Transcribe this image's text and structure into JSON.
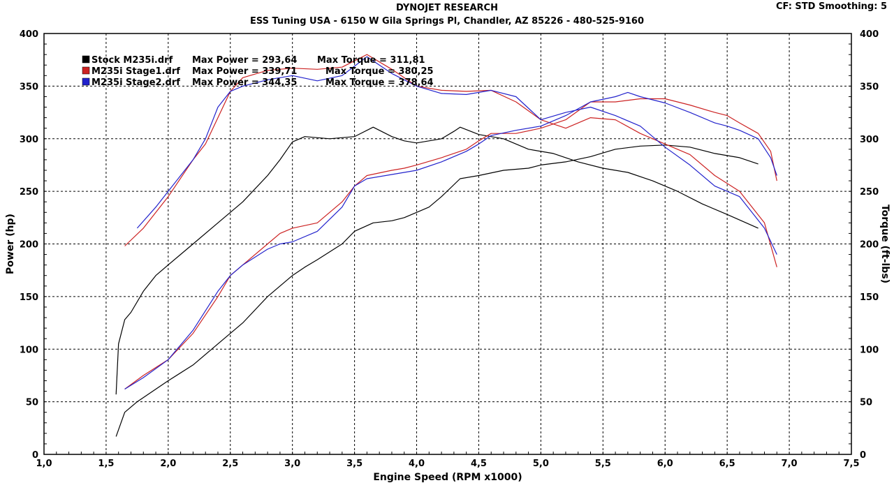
{
  "header": {
    "title": "DYNOJET RESEARCH",
    "subtitle": "ESS Tuning USA - 6150 W Gila Springs Pl, Chandler, AZ 85226 - 480-525-9160",
    "cf_info": "CF: STD  Smoothing: 5"
  },
  "colors": {
    "stock": "#000000",
    "stage1": "#cc2222",
    "stage2": "#2222cc",
    "grid": "#000000"
  },
  "chart_data": {
    "type": "line",
    "title": "DYNOJET RESEARCH",
    "xlabel": "Engine Speed (RPM x1000)",
    "ylabel": "Power (hp)",
    "ylabel_right": "Torque (ft-lbs)",
    "xlim": [
      1.0,
      7.5
    ],
    "ylim": [
      0,
      400
    ],
    "ylim_right": [
      0,
      400
    ],
    "x_ticks": [
      "1,0",
      "1,5",
      "2,0",
      "2,5",
      "3,0",
      "3,5",
      "4,0",
      "4,5",
      "5,0",
      "5,5",
      "6,0",
      "6,5",
      "7,0",
      "7,5"
    ],
    "y_ticks": [
      "0",
      "50",
      "100",
      "150",
      "200",
      "250",
      "300",
      "350",
      "400"
    ],
    "grid": true,
    "legend_position": "top-left",
    "legend": [
      {
        "run": "Stock M235i.drf",
        "power_label": "Max Power = 293,64",
        "torque_label": "Max Torque = 311,81",
        "color": "#000000"
      },
      {
        "run": "M235i Stage1.drf",
        "power_label": "Max Power = 339,71",
        "torque_label": "Max Torque = 380,25",
        "color": "#cc2222"
      },
      {
        "run": "M235i Stage2.drf",
        "power_label": "Max Power = 344,35",
        "torque_label": "Max Torque = 378,64",
        "color": "#2222cc"
      }
    ],
    "series": [
      {
        "name": "Stock M235i.drf",
        "measure": "power",
        "color": "#000000",
        "x": [
          1.58,
          1.65,
          1.75,
          1.9,
          2.0,
          2.2,
          2.4,
          2.6,
          2.8,
          3.0,
          3.1,
          3.2,
          3.4,
          3.5,
          3.65,
          3.8,
          3.9,
          4.0,
          4.1,
          4.2,
          4.35,
          4.5,
          4.7,
          4.9,
          5.0,
          5.2,
          5.4,
          5.6,
          5.8,
          6.0,
          6.2,
          6.4,
          6.6,
          6.75
        ],
        "y": [
          17,
          40,
          50,
          62,
          70,
          85,
          105,
          125,
          150,
          170,
          178,
          185,
          200,
          212,
          220,
          222,
          225,
          230,
          235,
          245,
          262,
          265,
          270,
          272,
          275,
          278,
          283,
          290,
          293,
          294,
          292,
          286,
          282,
          276
        ]
      },
      {
        "name": "Stock M235i.drf",
        "measure": "torque",
        "color": "#000000",
        "x": [
          1.58,
          1.6,
          1.65,
          1.7,
          1.8,
          1.9,
          2.0,
          2.2,
          2.4,
          2.6,
          2.8,
          2.9,
          3.0,
          3.1,
          3.3,
          3.5,
          3.65,
          3.8,
          3.9,
          4.0,
          4.1,
          4.2,
          4.3,
          4.35,
          4.5,
          4.7,
          4.9,
          5.1,
          5.3,
          5.5,
          5.7,
          5.9,
          6.1,
          6.3,
          6.5,
          6.75
        ],
        "y": [
          57,
          105,
          128,
          135,
          155,
          170,
          180,
          200,
          220,
          240,
          265,
          280,
          297,
          302,
          300,
          302,
          311,
          302,
          298,
          296,
          298,
          300,
          307,
          311,
          304,
          300,
          290,
          286,
          278,
          272,
          268,
          260,
          250,
          238,
          228,
          215
        ]
      },
      {
        "name": "M235i Stage1.drf",
        "measure": "power",
        "color": "#cc2222",
        "x": [
          1.65,
          1.8,
          2.0,
          2.2,
          2.4,
          2.5,
          2.6,
          2.8,
          2.9,
          3.0,
          3.2,
          3.4,
          3.5,
          3.6,
          3.8,
          3.9,
          4.0,
          4.2,
          4.4,
          4.5,
          4.6,
          4.8,
          5.0,
          5.2,
          5.4,
          5.6,
          5.8,
          6.0,
          6.2,
          6.4,
          6.5,
          6.6,
          6.75,
          6.85,
          6.9
        ],
        "y": [
          62,
          75,
          90,
          115,
          150,
          170,
          180,
          200,
          210,
          215,
          220,
          240,
          255,
          265,
          270,
          272,
          275,
          282,
          290,
          298,
          305,
          305,
          310,
          318,
          335,
          335,
          338,
          338,
          332,
          325,
          322,
          315,
          305,
          288,
          260
        ]
      },
      {
        "name": "M235i Stage1.drf",
        "measure": "torque",
        "color": "#cc2222",
        "x": [
          1.65,
          1.8,
          2.0,
          2.2,
          2.3,
          2.4,
          2.5,
          2.6,
          2.8,
          3.0,
          3.2,
          3.4,
          3.6,
          3.8,
          4.0,
          4.2,
          4.4,
          4.6,
          4.8,
          5.0,
          5.2,
          5.4,
          5.6,
          5.8,
          6.0,
          6.2,
          6.4,
          6.6,
          6.8,
          6.9
        ],
        "y": [
          198,
          215,
          245,
          280,
          295,
          320,
          345,
          358,
          365,
          367,
          366,
          368,
          380,
          366,
          350,
          346,
          345,
          346,
          335,
          318,
          310,
          320,
          318,
          305,
          295,
          285,
          265,
          250,
          220,
          178
        ]
      },
      {
        "name": "M235i Stage2.drf",
        "measure": "power",
        "color": "#2222cc",
        "x": [
          1.65,
          1.8,
          2.0,
          2.2,
          2.4,
          2.5,
          2.6,
          2.8,
          2.9,
          3.0,
          3.2,
          3.4,
          3.5,
          3.6,
          3.8,
          3.9,
          4.0,
          4.2,
          4.4,
          4.5,
          4.6,
          4.8,
          5.0,
          5.2,
          5.4,
          5.6,
          5.7,
          5.8,
          6.0,
          6.2,
          6.4,
          6.5,
          6.6,
          6.75,
          6.85,
          6.9
        ],
        "y": [
          62,
          73,
          90,
          118,
          155,
          170,
          180,
          195,
          200,
          202,
          212,
          235,
          255,
          262,
          266,
          268,
          270,
          278,
          288,
          295,
          303,
          308,
          312,
          322,
          335,
          340,
          344,
          340,
          334,
          325,
          315,
          312,
          308,
          300,
          282,
          265
        ]
      },
      {
        "name": "M235i Stage2.drf",
        "measure": "torque",
        "color": "#2222cc",
        "x": [
          1.75,
          1.9,
          2.0,
          2.2,
          2.3,
          2.4,
          2.5,
          2.6,
          2.8,
          3.0,
          3.2,
          3.4,
          3.6,
          3.8,
          4.0,
          4.2,
          4.4,
          4.6,
          4.8,
          5.0,
          5.2,
          5.4,
          5.6,
          5.8,
          6.0,
          6.2,
          6.4,
          6.6,
          6.8,
          6.9
        ],
        "y": [
          215,
          235,
          250,
          280,
          300,
          330,
          345,
          350,
          356,
          360,
          355,
          360,
          378,
          362,
          350,
          343,
          342,
          346,
          340,
          318,
          325,
          330,
          322,
          312,
          292,
          275,
          255,
          245,
          215,
          190
        ]
      }
    ]
  }
}
